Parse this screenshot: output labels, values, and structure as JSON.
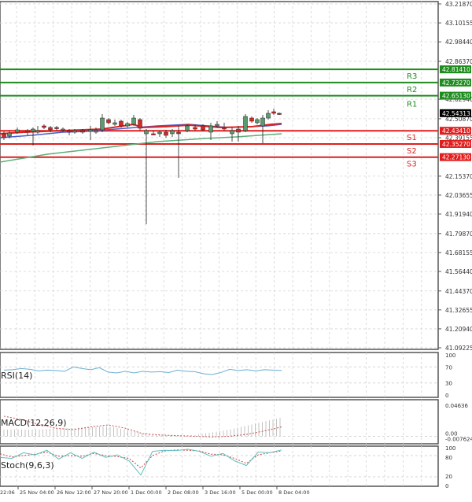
{
  "colors": {
    "background": "#ffffff",
    "grid": "#d4d4d4",
    "frame": "#555555",
    "resistance": "#1e8c1e",
    "support": "#e01e1e",
    "bull_candle": "#5a9c6e",
    "bear_candle": "#d42a2a",
    "ma_fast": "#e02020",
    "ma_mid": "#4a5ec8",
    "ma_slow": "#5fae78",
    "rsi_line": "#6aaed0",
    "macd_signal": "#c85050",
    "macd_hist": "#b4b4b4",
    "stoch_main": "#5fc0c0",
    "stoch_signal": "#d04040",
    "price_tag": "#000000"
  },
  "chart_data": [
    {
      "type": "candlestick",
      "title": "Main price chart",
      "ylim": [
        41.09225,
        43.2187
      ],
      "y_ticks": [
        "43.21870",
        "43.10155",
        "42.98440",
        "42.86370",
        "42.62940",
        "42.50870",
        "42.39155",
        "42.15370",
        "42.03655",
        "41.91940",
        "41.79870",
        "41.68155",
        "41.56440",
        "41.44370",
        "41.32655",
        "41.20940",
        "41.09225"
      ],
      "current_price": "42.54313",
      "levels": [
        {
          "name": "R3",
          "value": "42.81410",
          "kind": "resistance"
        },
        {
          "name": "R2",
          "value": "42.73270",
          "kind": "resistance"
        },
        {
          "name": "R1",
          "value": "42.65130",
          "kind": "resistance"
        },
        {
          "name": "S1",
          "value": "42.43410",
          "kind": "support"
        },
        {
          "name": "S2",
          "value": "42.35270",
          "kind": "support"
        },
        {
          "name": "S3",
          "value": "42.27130",
          "kind": "support"
        }
      ],
      "moving_averages": [
        "fast (red)",
        "medium (blue)",
        "slow (green)"
      ],
      "notable_wicks": [
        {
          "x_label": "1 Dec 00:00",
          "low": 41.85
        },
        {
          "x_label": "2 Dec 08:00",
          "low": 42.13
        }
      ]
    },
    {
      "type": "line",
      "title": "RSI(14)",
      "ylim": [
        0,
        100
      ],
      "y_ticks": [
        "100",
        "70",
        "30",
        "0"
      ],
      "values": [
        62,
        63,
        66,
        64,
        60,
        62,
        61,
        59,
        70,
        66,
        63,
        68,
        57,
        55,
        59,
        55,
        59,
        57,
        58,
        56,
        62,
        59,
        58,
        53,
        51,
        56,
        64,
        61,
        63,
        60,
        63,
        62,
        61
      ]
    },
    {
      "type": "line",
      "title": "MACD(12,26,9)",
      "y_ticks": [
        "0.04636",
        "0.00",
        "-0.007624"
      ],
      "signal_values": [
        0.03,
        0.025,
        0.018,
        0.012,
        0.01,
        0.014,
        0.017,
        0.012,
        0.004,
        0.002,
        0.001,
        0.0,
        -0.001,
        0.0,
        0.003,
        0.008,
        0.014
      ],
      "histogram_values": [
        0.01,
        0.01,
        0.01,
        0.012,
        0.012,
        0.014,
        0.015,
        0.01,
        0.004,
        0.002,
        0.001,
        0.002,
        0.006,
        0.01,
        0.016,
        0.022,
        0.028
      ]
    },
    {
      "type": "line",
      "title": "Stoch(9,6,3)",
      "ylim": [
        0,
        100
      ],
      "y_ticks": [
        "100",
        "80",
        "20",
        "0"
      ],
      "main_values": [
        75,
        72,
        88,
        82,
        95,
        70,
        88,
        72,
        90,
        75,
        82,
        65,
        25,
        92,
        95,
        94,
        98,
        92,
        78,
        86,
        65,
        52,
        90,
        88,
        96
      ],
      "signal_values": [
        85,
        76,
        80,
        84,
        90,
        78,
        80,
        78,
        86,
        80,
        77,
        72,
        45,
        80,
        93,
        96,
        95,
        93,
        84,
        82,
        72,
        58,
        82,
        88,
        93
      ]
    }
  ],
  "x_axis": {
    "labels": [
      "22:06",
      "25 Nov 04:00",
      "26 Nov 12:00",
      "27 Nov 20:00",
      "1 Dec 00:00",
      "2 Dec 08:00",
      "3 Dec 16:00",
      "5 Dec 00:00",
      "8 Dec 04:00"
    ]
  },
  "panes": {
    "rsi_label": "RSI(14)",
    "macd_label": "MACD(12,26,9)",
    "stoch_label": "Stoch(9,6,3)"
  }
}
